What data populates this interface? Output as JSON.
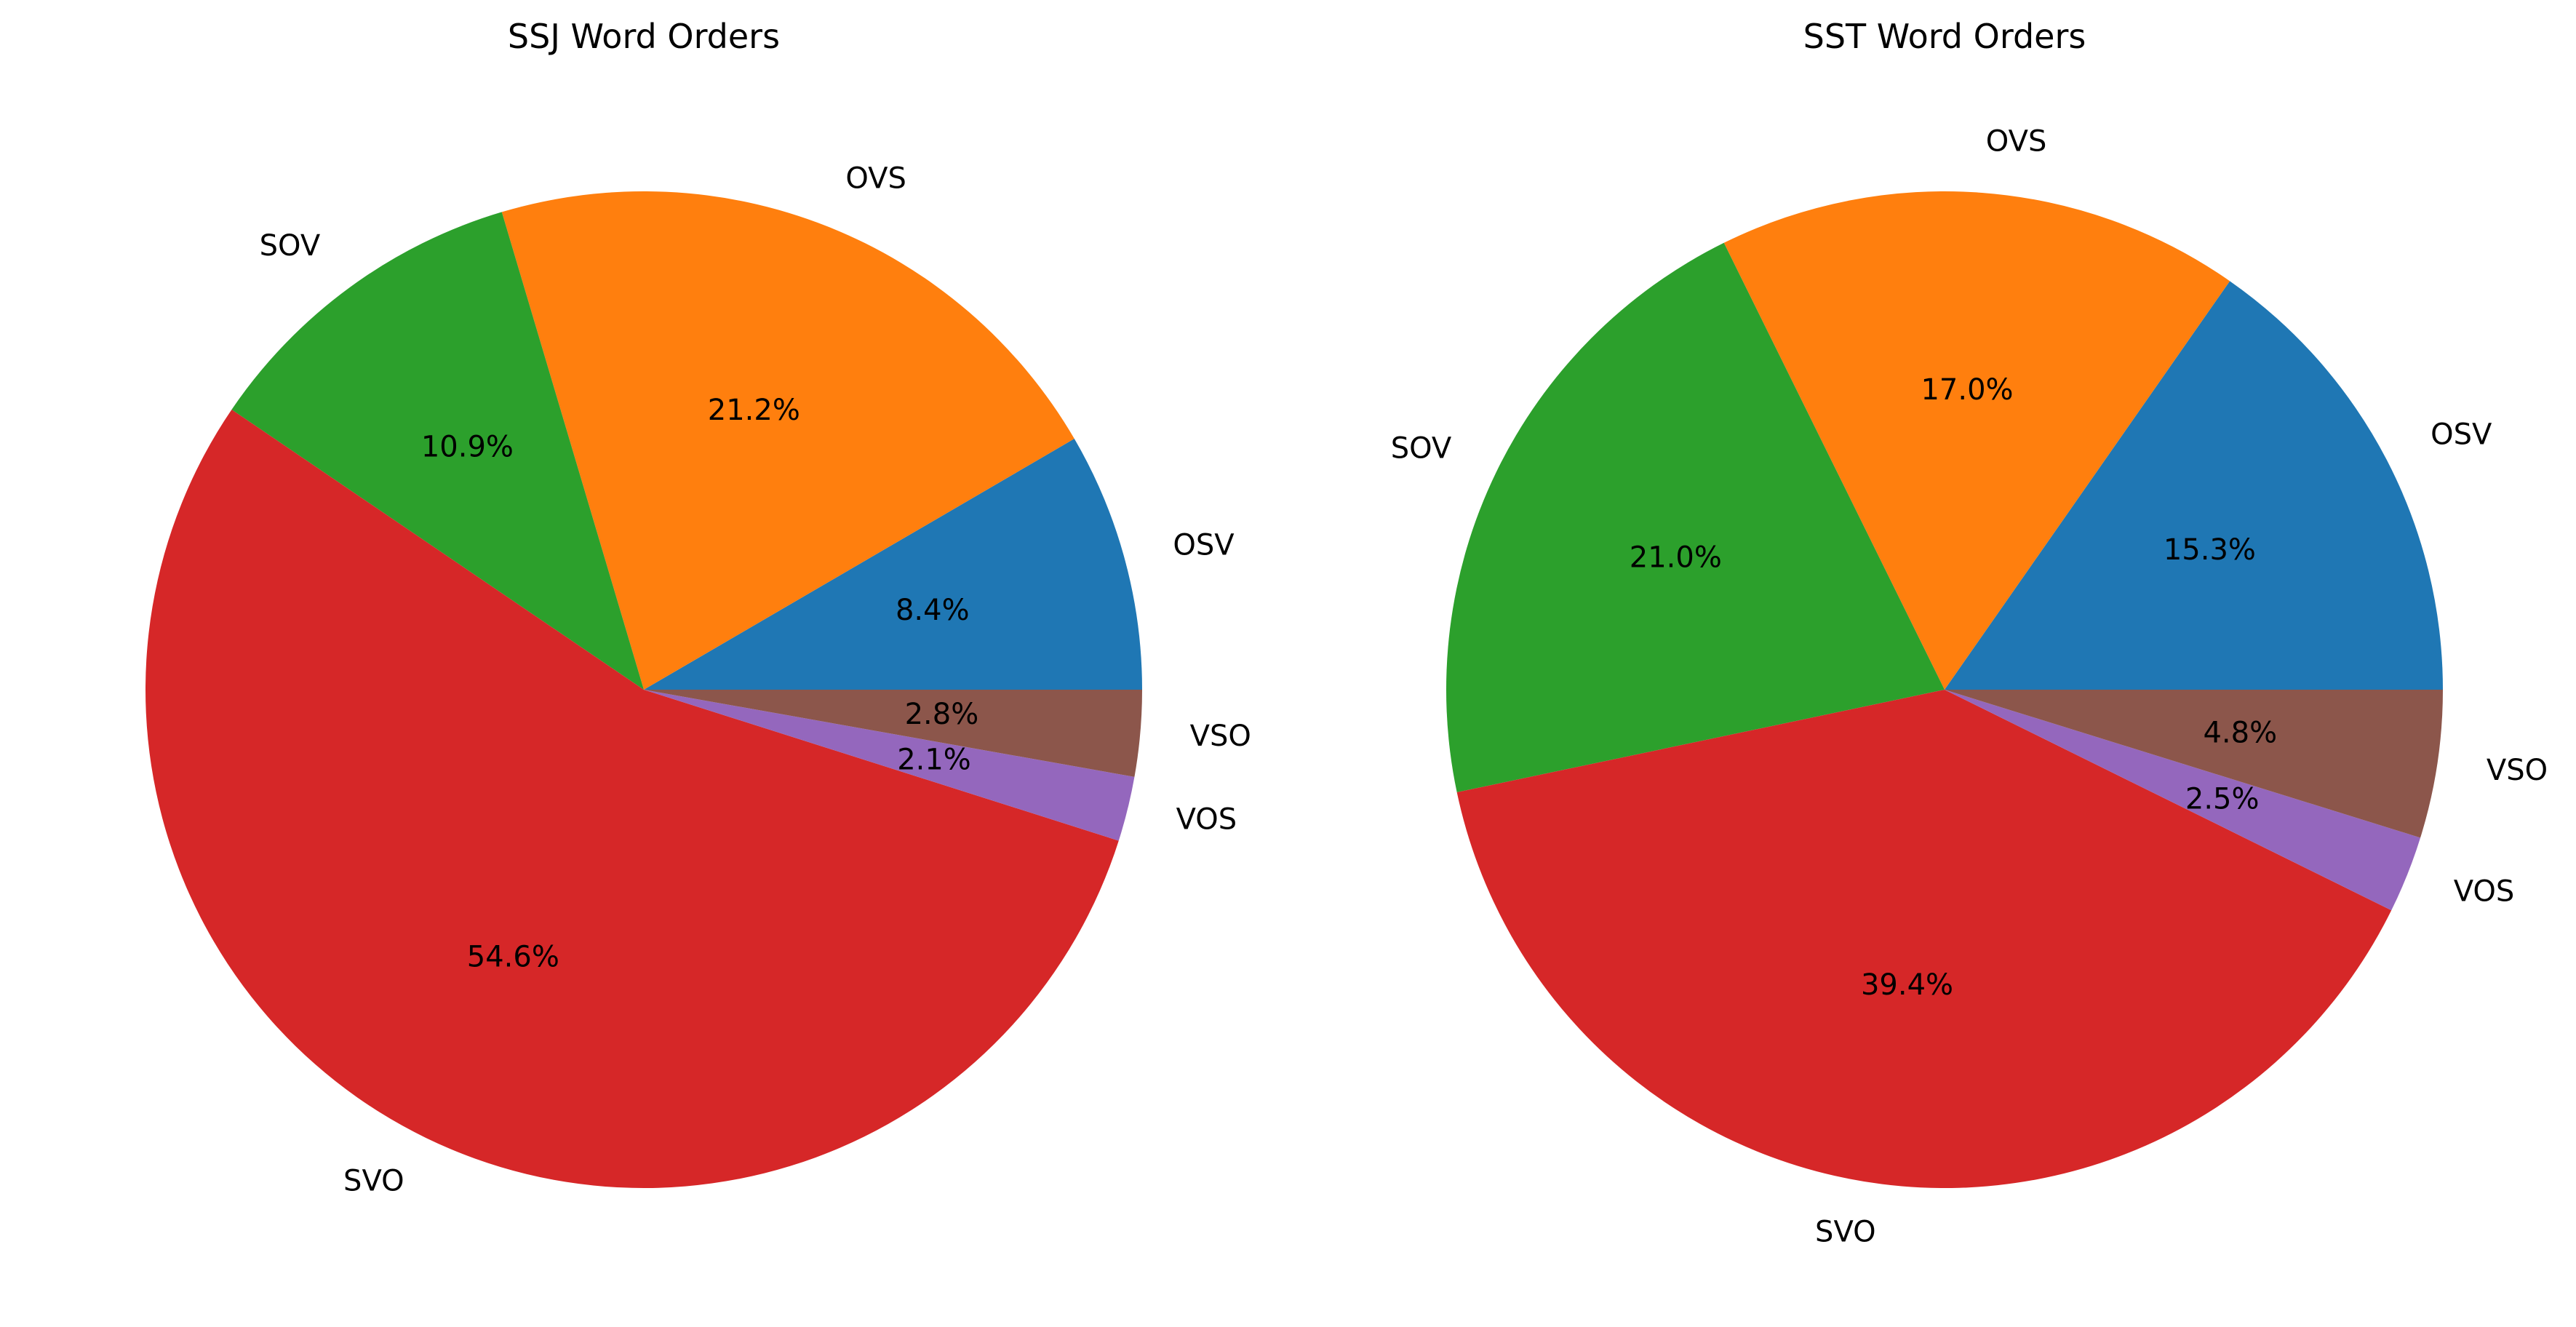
{
  "chart_data": [
    {
      "type": "pie",
      "title": "SSJ Word Orders",
      "categories": [
        "OSV",
        "OVS",
        "SOV",
        "SVO",
        "VOS",
        "VSO"
      ],
      "values": [
        8.4,
        21.2,
        10.9,
        54.6,
        2.1,
        2.8
      ],
      "value_labels": [
        "8.4%",
        "21.2%",
        "10.9%",
        "54.6%",
        "2.1%",
        "2.8%"
      ],
      "colors": [
        "#1f77b4",
        "#ff7f0e",
        "#2ca02c",
        "#d62728",
        "#9467bd",
        "#8c564b"
      ],
      "start_angle_deg": 0,
      "direction": "counterclockwise",
      "legend": "none"
    },
    {
      "type": "pie",
      "title": "SST Word Orders",
      "categories": [
        "OSV",
        "OVS",
        "SOV",
        "SVO",
        "VOS",
        "VSO"
      ],
      "values": [
        15.3,
        17.0,
        21.0,
        39.4,
        2.5,
        4.8
      ],
      "value_labels": [
        "15.3%",
        "17.0%",
        "21.0%",
        "39.4%",
        "2.5%",
        "4.8%"
      ],
      "colors": [
        "#1f77b4",
        "#ff7f0e",
        "#2ca02c",
        "#d62728",
        "#9467bd",
        "#8c564b"
      ],
      "start_angle_deg": 0,
      "direction": "counterclockwise",
      "legend": "none"
    }
  ]
}
